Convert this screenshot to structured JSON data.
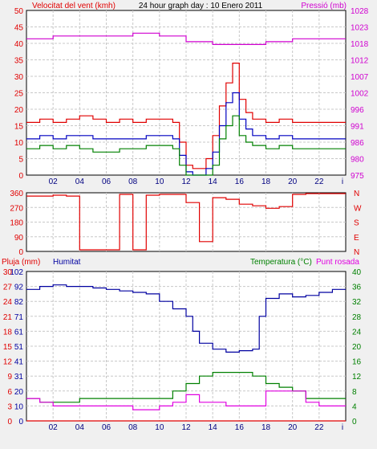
{
  "colors": {
    "wind": "#e00000",
    "gust": "#e00000",
    "avgwind": "#0000c0",
    "lowwind": "#008000",
    "pressure": "#d000d0",
    "direction": "#e00000",
    "rain": "#e00000",
    "humidity": "#0000a0",
    "temperature": "#008000",
    "dewpoint": "#e000e0",
    "grid": "#c8c8c8",
    "frame": "#000000"
  },
  "header": {
    "left_label": "Velocitat del vent (kmh)",
    "center_label": "24 hour graph day : 10 Enero 2011",
    "right_label": "Pressió (mb)"
  },
  "footer": {
    "rain_label": "Pluja (mm)",
    "humidity_label": "Humitat",
    "temp_label": "Temperatura (°C)",
    "dew_label": "Punt rosada"
  },
  "chart_data": [
    {
      "type": "line",
      "title": "24 hour graph day : 10 Enero 2011",
      "xlabel": "",
      "x_ticks": [
        "02",
        "04",
        "06",
        "08",
        "10",
        "12",
        "14",
        "16",
        "18",
        "20",
        "22"
      ],
      "ylabel": "Velocitat del vent (kmh)",
      "ylim": [
        0,
        50
      ],
      "y_ticks": [
        0,
        5,
        10,
        15,
        20,
        25,
        30,
        35,
        40,
        45,
        50
      ],
      "y2label": "Pressió (mb)",
      "y2lim": [
        975,
        1033
      ],
      "y2_ticks": [
        975,
        980,
        986,
        991,
        996,
        1002,
        1007,
        1012,
        1018,
        1023,
        1028
      ],
      "series": [
        {
          "name": "gust",
          "axis": "left",
          "x": [
            0,
            1,
            2,
            3,
            4,
            5,
            6,
            7,
            8,
            9,
            10,
            11,
            11.5,
            12,
            12.5,
            13,
            13.5,
            14,
            14.5,
            15,
            15.5,
            16,
            16.5,
            17,
            18,
            19,
            20,
            21,
            22,
            23,
            24
          ],
          "values": [
            16,
            17,
            16,
            17,
            18,
            17,
            16,
            17,
            16,
            17,
            17,
            16,
            10,
            3,
            2,
            2,
            5,
            12,
            21,
            28,
            34,
            23,
            19,
            17,
            16,
            17,
            16,
            16,
            16,
            16,
            16
          ]
        },
        {
          "name": "avg",
          "axis": "left",
          "x": [
            0,
            1,
            2,
            3,
            4,
            5,
            6,
            7,
            8,
            9,
            10,
            11,
            11.5,
            12,
            12.5,
            13,
            13.5,
            14,
            14.5,
            15,
            15.5,
            16,
            16.5,
            17,
            18,
            19,
            20,
            21,
            22,
            23,
            24
          ],
          "values": [
            11,
            12,
            11,
            12,
            12,
            11,
            11,
            11,
            11,
            12,
            12,
            11,
            6,
            1,
            0,
            0,
            2,
            7,
            15,
            22,
            25,
            17,
            14,
            12,
            11,
            12,
            11,
            11,
            11,
            11,
            11
          ]
        },
        {
          "name": "low",
          "axis": "left",
          "x": [
            0,
            1,
            2,
            3,
            4,
            5,
            6,
            7,
            8,
            9,
            10,
            11,
            11.5,
            12,
            12.5,
            13,
            13.5,
            14,
            14.5,
            15,
            15.5,
            16,
            16.5,
            17,
            18,
            19,
            20,
            21,
            22,
            23,
            24
          ],
          "values": [
            8,
            9,
            8,
            9,
            8,
            7,
            7,
            8,
            8,
            9,
            9,
            8,
            3,
            0,
            0,
            0,
            0,
            3,
            11,
            15,
            18,
            12,
            10,
            9,
            8,
            9,
            8,
            8,
            8,
            8,
            8
          ]
        },
        {
          "name": "pressure",
          "axis": "right",
          "x": [
            0,
            2,
            4,
            6,
            8,
            9,
            10,
            12,
            14,
            16,
            18,
            20,
            22,
            24
          ],
          "values": [
            1023,
            1024,
            1024,
            1024,
            1025,
            1025,
            1024,
            1022,
            1021,
            1021,
            1022,
            1023,
            1023,
            1023
          ]
        }
      ]
    },
    {
      "type": "line",
      "title": "",
      "ylabel": "",
      "ylim": [
        0,
        360
      ],
      "y_ticks": [
        0,
        90,
        180,
        270,
        360
      ],
      "y2_ticks": [
        "N",
        "W",
        "S",
        "E",
        "N"
      ],
      "series": [
        {
          "name": "direction",
          "x": [
            0,
            1,
            2,
            3,
            4,
            5,
            6,
            7,
            8,
            9,
            10,
            11,
            12,
            13,
            14,
            15,
            16,
            17,
            18,
            19,
            20,
            21,
            22,
            23,
            24
          ],
          "values": [
            340,
            340,
            345,
            340,
            10,
            10,
            10,
            350,
            10,
            345,
            350,
            350,
            300,
            60,
            330,
            320,
            290,
            280,
            265,
            275,
            350,
            355,
            355,
            355,
            355
          ]
        }
      ]
    },
    {
      "type": "line",
      "title": "",
      "x_ticks": [
        "02",
        "04",
        "06",
        "08",
        "10",
        "12",
        "14",
        "16",
        "18",
        "20",
        "22"
      ],
      "ylabel": "Pluja (mm)",
      "ylim": [
        0,
        100
      ],
      "y_ticks": [
        0,
        10,
        20,
        31,
        41,
        51,
        61,
        71,
        82,
        92,
        102
      ],
      "y_tick_labels_rain": [
        "0",
        "3",
        "6",
        "9",
        "12",
        "15",
        "18",
        "21",
        "24",
        "27",
        "30"
      ],
      "y2label": "Temperatura (°C)",
      "y2lim": [
        0,
        40
      ],
      "y2_ticks": [
        0,
        4,
        8,
        12,
        16,
        20,
        24,
        28,
        32,
        36,
        40
      ],
      "series": [
        {
          "name": "humidity",
          "axis": "left",
          "x": [
            0,
            1,
            2,
            3,
            4,
            5,
            6,
            7,
            8,
            9,
            10,
            11,
            12,
            12.5,
            13,
            14,
            15,
            16,
            17,
            17.5,
            18,
            19,
            20,
            21,
            22,
            23,
            24
          ],
          "values": [
            88,
            90,
            91,
            90,
            90,
            89,
            88,
            87,
            86,
            85,
            80,
            75,
            70,
            60,
            52,
            48,
            46,
            47,
            48,
            70,
            82,
            85,
            83,
            84,
            86,
            88,
            88
          ]
        },
        {
          "name": "temperature",
          "axis": "right",
          "x": [
            0,
            1,
            2,
            3,
            4,
            5,
            6,
            7,
            8,
            9,
            10,
            11,
            12,
            13,
            14,
            15,
            16,
            17,
            18,
            19,
            20,
            21,
            22,
            23,
            24
          ],
          "values": [
            6,
            5,
            5,
            5,
            6,
            6,
            6,
            6,
            6,
            6,
            6,
            8,
            10,
            12,
            13,
            13,
            13,
            12,
            10,
            9,
            8,
            6,
            6,
            6,
            6
          ]
        },
        {
          "name": "dewpoint",
          "axis": "right",
          "x": [
            0,
            1,
            2,
            3,
            4,
            5,
            6,
            7,
            8,
            9,
            10,
            11,
            12,
            13,
            14,
            15,
            16,
            17,
            18,
            19,
            20,
            21,
            22,
            23,
            24
          ],
          "values": [
            6,
            5,
            4,
            4,
            4,
            4,
            4,
            4,
            3,
            3,
            4,
            5,
            7,
            5,
            5,
            4,
            4,
            4,
            8,
            8,
            8,
            5,
            4,
            4,
            4
          ]
        },
        {
          "name": "rain",
          "axis": "left",
          "x": [
            0,
            24
          ],
          "values": [
            0,
            0
          ]
        }
      ]
    }
  ]
}
